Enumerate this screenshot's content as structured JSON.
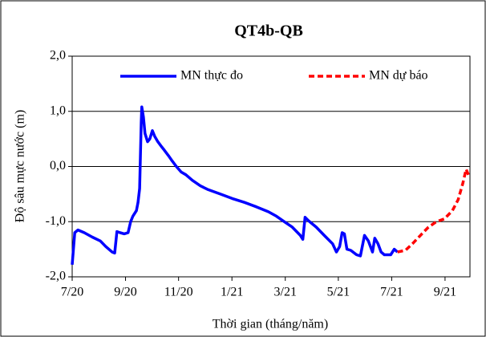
{
  "chart_data": {
    "type": "line",
    "title": "QT4b-QB",
    "xlabel": "Thời gian (tháng/năm)",
    "ylabel": "Độ sâu mực nước (m)",
    "xlim": [
      2020.5,
      2021.745
    ],
    "xticks": [
      {
        "value": 2020.5,
        "label": "7/20"
      },
      {
        "value": 2020.667,
        "label": "9/20"
      },
      {
        "value": 2020.833,
        "label": "11/20"
      },
      {
        "value": 2021.0,
        "label": "1/21"
      },
      {
        "value": 2021.167,
        "label": "3/21"
      },
      {
        "value": 2021.333,
        "label": "5/21"
      },
      {
        "value": 2021.5,
        "label": "7/21"
      },
      {
        "value": 2021.667,
        "label": "9/21"
      }
    ],
    "ylim": [
      -2,
      2
    ],
    "yticks": [
      {
        "value": -2,
        "label": "-2,0"
      },
      {
        "value": -1,
        "label": "-1,0"
      },
      {
        "value": 0,
        "label": "0,0"
      },
      {
        "value": 1,
        "label": "1,0"
      },
      {
        "value": 2,
        "label": "2,0"
      }
    ],
    "grid": true,
    "legend": "top",
    "series": [
      {
        "name": "MN thực đo",
        "color": "#0000ff",
        "dash": false,
        "x": [
          2020.5,
          2020.508,
          2020.518,
          2020.538,
          2020.563,
          2020.588,
          2020.605,
          2020.625,
          2020.633,
          2020.64,
          2020.65,
          2020.663,
          2020.675,
          2020.683,
          2020.69,
          2020.701,
          2020.706,
          2020.711,
          2020.716,
          2020.718,
          2020.723,
          2020.728,
          2020.736,
          2020.743,
          2020.751,
          2020.758,
          2020.768,
          2020.781,
          2020.788,
          2020.801,
          2020.813,
          2020.826,
          2020.841,
          2020.856,
          2020.876,
          2020.901,
          2020.926,
          2020.964,
          2021.001,
          2021.039,
          2021.076,
          2021.114,
          2021.139,
          2021.164,
          2021.189,
          2021.214,
          2021.222,
          2021.229,
          2021.239,
          2021.264,
          2021.289,
          2021.315,
          2021.327,
          2021.337,
          2021.345,
          2021.352,
          2021.36,
          2021.372,
          2021.39,
          2021.402,
          2021.415,
          2021.427,
          2021.44,
          2021.447,
          2021.457,
          2021.467,
          2021.477,
          2021.497,
          2021.508,
          2021.518
        ],
        "y": [
          -1.78,
          -1.2,
          -1.15,
          -1.2,
          -1.28,
          -1.35,
          -1.45,
          -1.55,
          -1.57,
          -1.18,
          -1.2,
          -1.22,
          -1.2,
          -1.0,
          -0.9,
          -0.8,
          -0.65,
          -0.4,
          0.8,
          1.08,
          0.9,
          0.6,
          0.45,
          0.5,
          0.65,
          0.55,
          0.45,
          0.35,
          0.3,
          0.2,
          0.1,
          0.0,
          -0.1,
          -0.15,
          -0.25,
          -0.35,
          -0.42,
          -0.5,
          -0.58,
          -0.65,
          -0.73,
          -0.82,
          -0.9,
          -1.0,
          -1.1,
          -1.25,
          -1.32,
          -0.92,
          -0.98,
          -1.1,
          -1.25,
          -1.4,
          -1.55,
          -1.45,
          -1.2,
          -1.22,
          -1.5,
          -1.52,
          -1.6,
          -1.62,
          -1.25,
          -1.35,
          -1.55,
          -1.3,
          -1.4,
          -1.55,
          -1.6,
          -1.6,
          -1.5,
          -1.55
        ]
      },
      {
        "name": "MN dự báo",
        "color": "#ff0000",
        "dash": true,
        "x": [
          2021.518,
          2021.543,
          2021.565,
          2021.59,
          2021.615,
          2021.64,
          2021.665,
          2021.69,
          2021.708,
          2021.723,
          2021.733,
          2021.74
        ],
        "y": [
          -1.55,
          -1.52,
          -1.4,
          -1.25,
          -1.1,
          -1.0,
          -0.95,
          -0.8,
          -0.6,
          -0.3,
          -0.05,
          -0.15
        ]
      }
    ]
  }
}
